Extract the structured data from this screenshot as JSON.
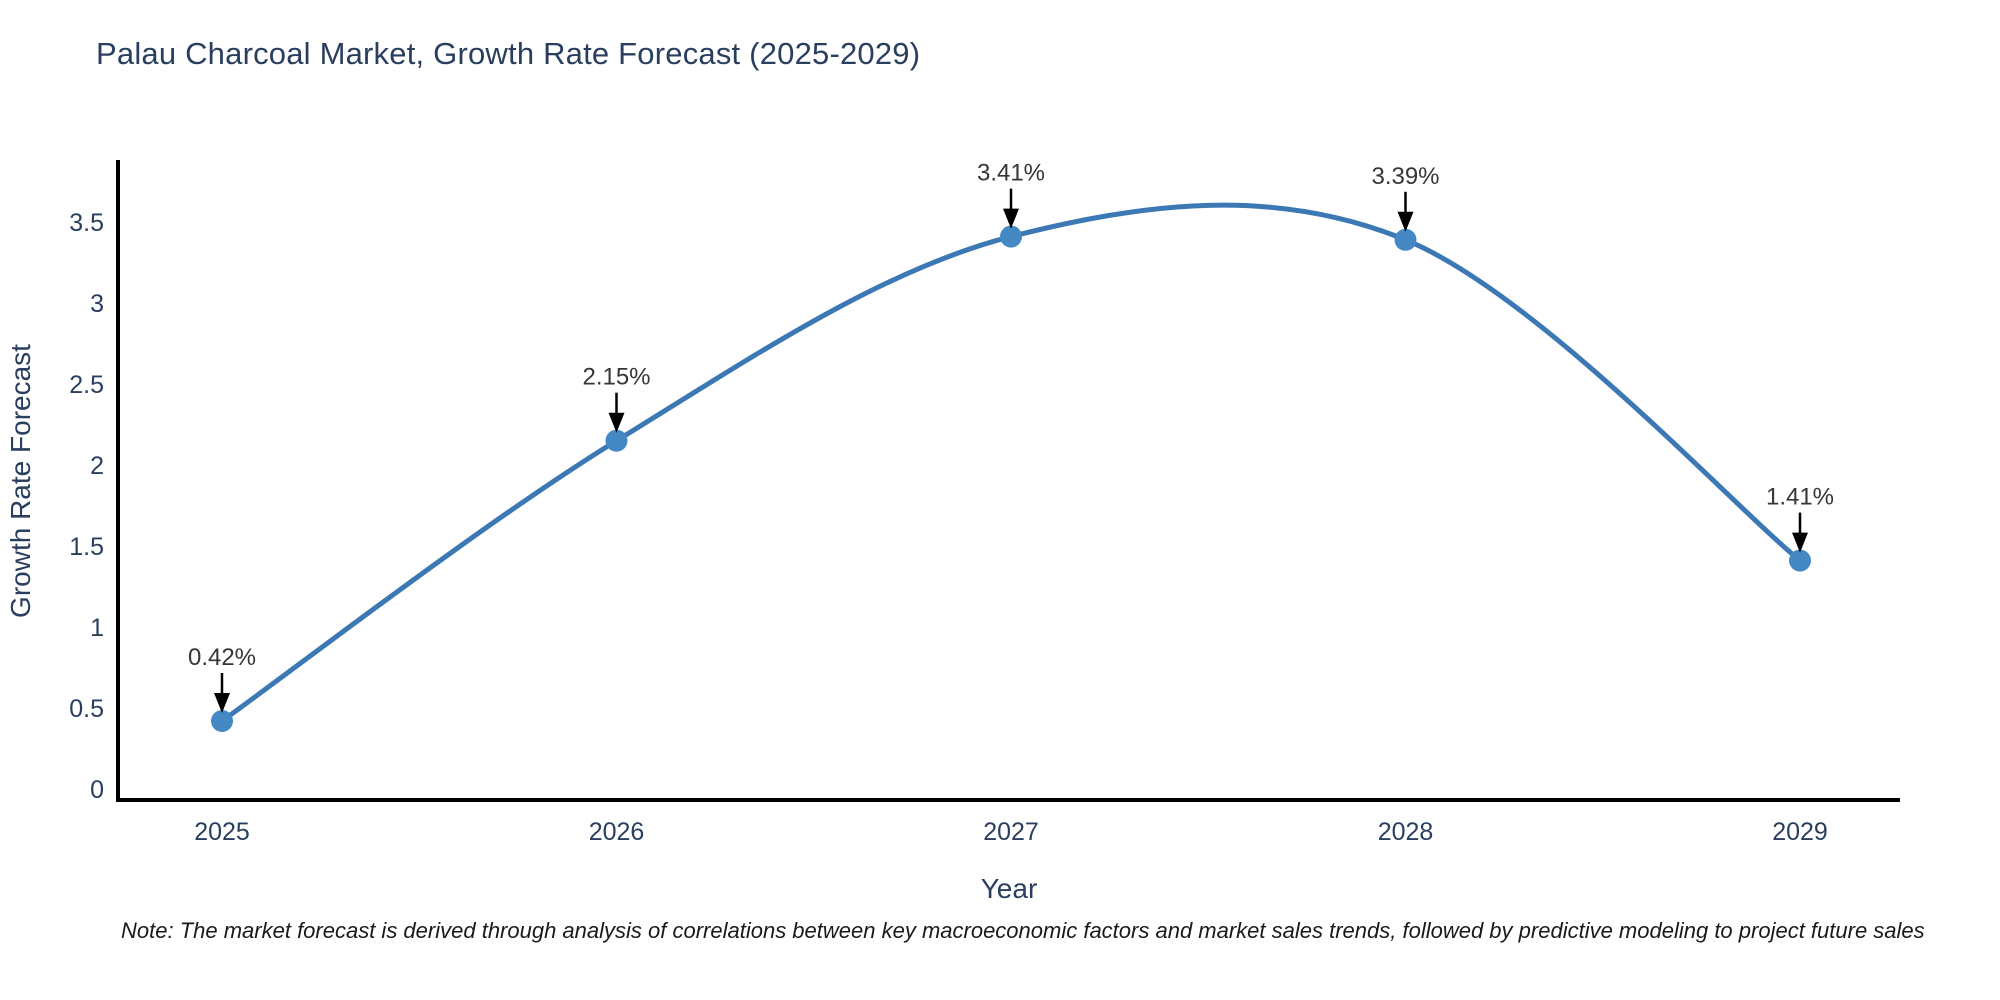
{
  "title": "Palau Charcoal Market, Growth Rate Forecast (2025-2029)",
  "note": "Note: The market forecast is derived through analysis of correlations between key macroeconomic factors and market sales trends, followed by predictive modeling to project future sales",
  "chart_data": {
    "type": "line",
    "title": "Palau Charcoal Market, Growth Rate Forecast (2025-2029)",
    "xlabel": "Year",
    "ylabel": "Growth Rate Forecast",
    "categories": [
      "2025",
      "2026",
      "2027",
      "2028",
      "2029"
    ],
    "series": [
      {
        "name": "Growth Rate Forecast",
        "values": [
          0.42,
          2.15,
          3.41,
          3.39,
          1.41
        ],
        "point_labels": [
          "0.42%",
          "2.15%",
          "3.41%",
          "3.39%",
          "1.41%"
        ]
      }
    ],
    "ytick_labels": [
      "0",
      "0.5",
      "1",
      "1.5",
      "2",
      "2.5",
      "3",
      "3.5"
    ],
    "ytick_values": [
      0,
      0.5,
      1,
      1.5,
      2,
      2.5,
      3,
      3.5
    ],
    "ylim": [
      0,
      3.5
    ],
    "line_shape": "spline",
    "grid": false,
    "legend_position": "none",
    "colors": {
      "line": "#3c78b4",
      "marker": "#4489c4",
      "axis": "#000000",
      "tick_text": "#2a3f5f",
      "axis_title_text": "#2a3f5f",
      "annotation_text": "#363636",
      "arrow": "#000000"
    }
  }
}
